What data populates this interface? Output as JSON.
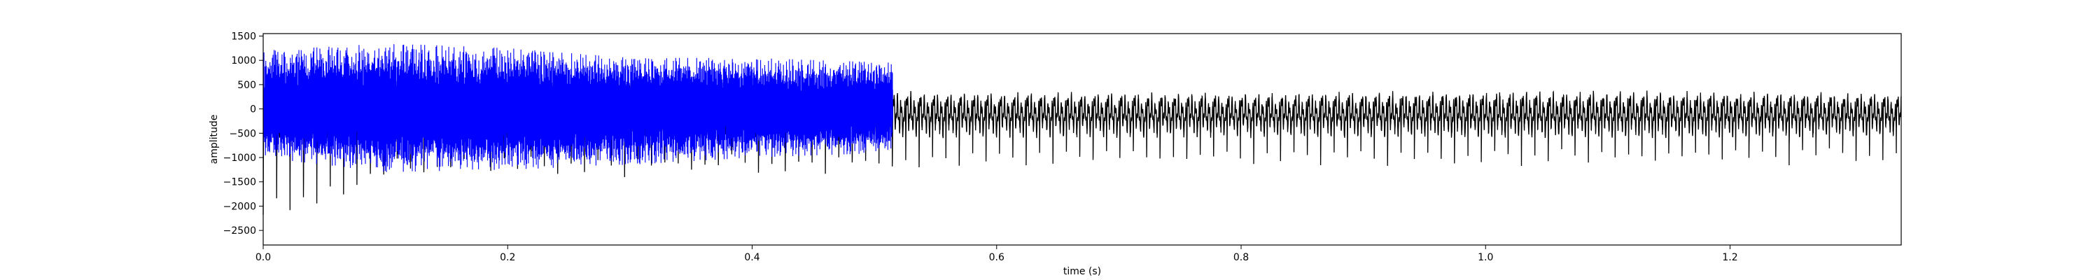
{
  "chart_data": {
    "type": "line",
    "title": "",
    "xlabel": "time (s)",
    "ylabel": "amplitude",
    "xlim": [
      0,
      1.34
    ],
    "ylim": [
      -2800,
      1550
    ],
    "x_ticks": [
      0.0,
      0.2,
      0.4,
      0.6,
      0.8,
      1.0,
      1.2
    ],
    "x_tick_labels": [
      "0.0",
      "0.2",
      "0.4",
      "0.6",
      "0.8",
      "1.0",
      "1.2"
    ],
    "y_ticks": [
      1500,
      1000,
      500,
      0,
      -500,
      -1000,
      -1500,
      -2000,
      -2500
    ],
    "y_tick_labels": [
      "1500",
      "1000",
      "500",
      "0",
      "−500",
      "−1000",
      "−1500",
      "−2000",
      "−2500"
    ],
    "grid": false,
    "legend": "none",
    "series": [
      {
        "color": "#000000",
        "x_range": [
          0,
          1.34
        ],
        "sampling": "dense oscillating waveform",
        "envelope": [
          {
            "x": 0.0,
            "min": -2300,
            "max": 650
          },
          {
            "x": 0.03,
            "min": -2550,
            "max": 700
          },
          {
            "x": 0.1,
            "min": -1600,
            "max": 650
          },
          {
            "x": 0.2,
            "min": -1350,
            "max": 600
          },
          {
            "x": 0.3,
            "min": -1450,
            "max": 550
          },
          {
            "x": 0.4,
            "min": -1400,
            "max": 500
          },
          {
            "x": 0.5,
            "min": -1350,
            "max": 450
          },
          {
            "x": 0.6,
            "min": -1200,
            "max": 420
          },
          {
            "x": 0.8,
            "min": -1200,
            "max": 400
          },
          {
            "x": 1.0,
            "min": -1250,
            "max": 450
          },
          {
            "x": 1.2,
            "min": -1200,
            "max": 430
          },
          {
            "x": 1.34,
            "min": -1150,
            "max": 400
          }
        ]
      },
      {
        "color": "#0000ff",
        "x_range": [
          0,
          0.515
        ],
        "sampling": "dense oscillating waveform",
        "envelope": [
          {
            "x": 0.0,
            "min": -1000,
            "max": 1200
          },
          {
            "x": 0.1,
            "min": -1300,
            "max": 1350
          },
          {
            "x": 0.2,
            "min": -1250,
            "max": 1250
          },
          {
            "x": 0.3,
            "min": -1150,
            "max": 1050
          },
          {
            "x": 0.4,
            "min": -1000,
            "max": 1050
          },
          {
            "x": 0.515,
            "min": -900,
            "max": 950
          }
        ]
      }
    ]
  }
}
